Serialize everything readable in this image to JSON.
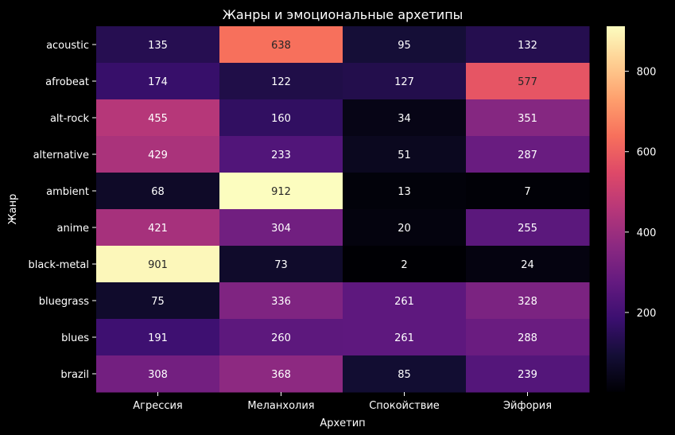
{
  "chart_data": {
    "type": "heatmap",
    "title": "Жанры и эмоциональные архетипы",
    "xlabel": "Архетип",
    "ylabel": "Жанр",
    "x_categories": [
      "Агрессия",
      "Меланхолия",
      "Спокойствие",
      "Эйфория"
    ],
    "y_categories": [
      "acoustic",
      "afrobeat",
      "alt-rock",
      "alternative",
      "ambient",
      "anime",
      "black-metal",
      "bluegrass",
      "blues",
      "brazil"
    ],
    "values": [
      [
        135,
        638,
        95,
        132
      ],
      [
        174,
        122,
        127,
        577
      ],
      [
        455,
        160,
        34,
        351
      ],
      [
        429,
        233,
        51,
        287
      ],
      [
        68,
        912,
        13,
        7
      ],
      [
        421,
        304,
        20,
        255
      ],
      [
        901,
        73,
        2,
        24
      ],
      [
        75,
        336,
        261,
        328
      ],
      [
        191,
        260,
        261,
        288
      ],
      [
        308,
        368,
        85,
        239
      ]
    ],
    "colormap": "magma",
    "value_range": [
      2,
      912
    ],
    "colorbar_ticks": [
      200,
      400,
      600,
      800
    ]
  }
}
